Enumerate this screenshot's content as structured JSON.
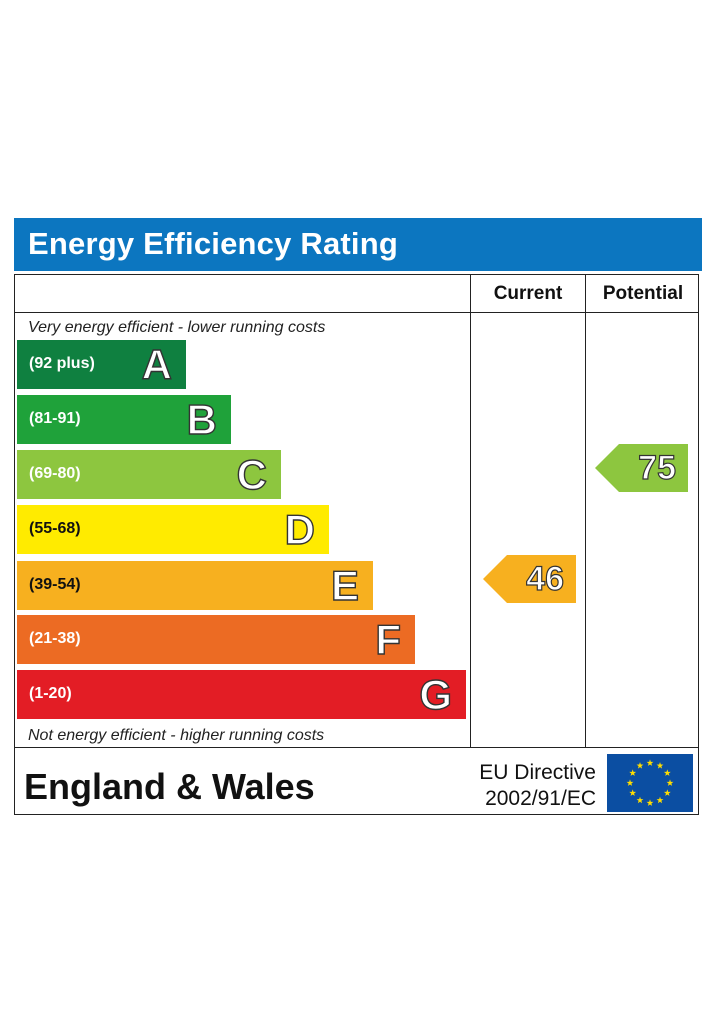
{
  "title": "Energy Efficiency Rating",
  "columns": {
    "current": "Current",
    "potential": "Potential"
  },
  "notes": {
    "top": "Very energy efficient - lower running costs",
    "bottom": "Not energy efficient - higher running costs"
  },
  "footer": {
    "region": "England & Wales",
    "directive_line1": "EU Directive",
    "directive_line2": "2002/91/EC"
  },
  "chart_data": {
    "type": "bar",
    "title": "Energy Efficiency Rating",
    "categories": [
      "A",
      "B",
      "C",
      "D",
      "E",
      "F",
      "G"
    ],
    "ranges": [
      "(92 plus)",
      "(81-91)",
      "(69-80)",
      "(55-68)",
      "(39-54)",
      "(21-38)",
      "(1-20)"
    ],
    "band_colors": [
      "#0f8040",
      "#1fa23a",
      "#8dc63f",
      "#ffeb00",
      "#f7b01f",
      "#ec6b23",
      "#e31d25"
    ],
    "current": {
      "value": 46,
      "band": "E",
      "color": "#f7b01f"
    },
    "potential": {
      "value": 75,
      "band": "C",
      "color": "#8dc63f"
    }
  }
}
